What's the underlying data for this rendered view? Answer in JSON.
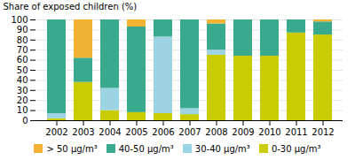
{
  "chart_data": {
    "type": "bar",
    "stacked": true,
    "categories": [
      "2002",
      "2003",
      "2004",
      "2005",
      "2006",
      "2007",
      "2008",
      "2009",
      "2010",
      "2011",
      "2012"
    ],
    "series": [
      {
        "name": "0-30 μg/m³",
        "color": "#c8cc00",
        "values": [
          2,
          38,
          10,
          8,
          7,
          6,
          65,
          64,
          64,
          87,
          85
        ]
      },
      {
        "name": "30-40 μg/m³",
        "color": "#9dd4e3",
        "values": [
          5,
          0,
          22,
          0,
          76,
          6,
          5,
          0,
          0,
          0,
          0
        ]
      },
      {
        "name": "40-50 μg/m³",
        "color": "#3aaa8e",
        "values": [
          93,
          24,
          68,
          85,
          17,
          88,
          26,
          36,
          36,
          13,
          13
        ]
      },
      {
        "name": "> 50 μg/m³",
        "color": "#f2b233",
        "values": [
          0,
          38,
          0,
          7,
          0,
          0,
          4,
          0,
          0,
          0,
          2
        ]
      }
    ],
    "ylabel": "Share of exposed children (%)",
    "ylim": [
      0,
      100
    ],
    "yticks": [
      0,
      10,
      20,
      30,
      40,
      50,
      60,
      70,
      80,
      90,
      100
    ],
    "grid": true,
    "legend": "bottom"
  }
}
